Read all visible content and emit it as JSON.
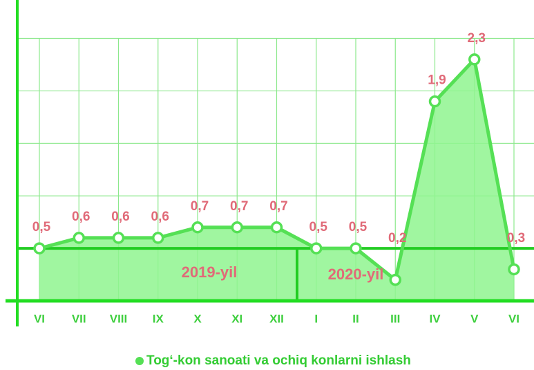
{
  "chart_data": {
    "type": "line",
    "categories": [
      "VI",
      "VII",
      "VIII",
      "IX",
      "X",
      "XI",
      "XII",
      "I",
      "II",
      "III",
      "IV",
      "V",
      "VI"
    ],
    "series": [
      {
        "name": "Tog‘-kon sanoati va ochiq konlarni ishlash",
        "color": "#55e055",
        "values": [
          0.5,
          0.6,
          0.6,
          0.6,
          0.7,
          0.7,
          0.7,
          0.5,
          0.5,
          0.2,
          1.9,
          2.3,
          0.3
        ],
        "value_labels": [
          "0,5",
          "0,6",
          "0,6",
          "0,6",
          "0,7",
          "0,7",
          "0,7",
          "0,5",
          "0,5",
          "0,2",
          "1,9",
          "2,3",
          "0,3"
        ]
      }
    ],
    "annotations": [
      "2019-yil",
      "2020-yil"
    ],
    "ylim": [
      0,
      2.8
    ],
    "yticks": [
      0,
      0.5,
      1,
      1.5,
      2,
      2.5
    ],
    "grid": true
  }
}
